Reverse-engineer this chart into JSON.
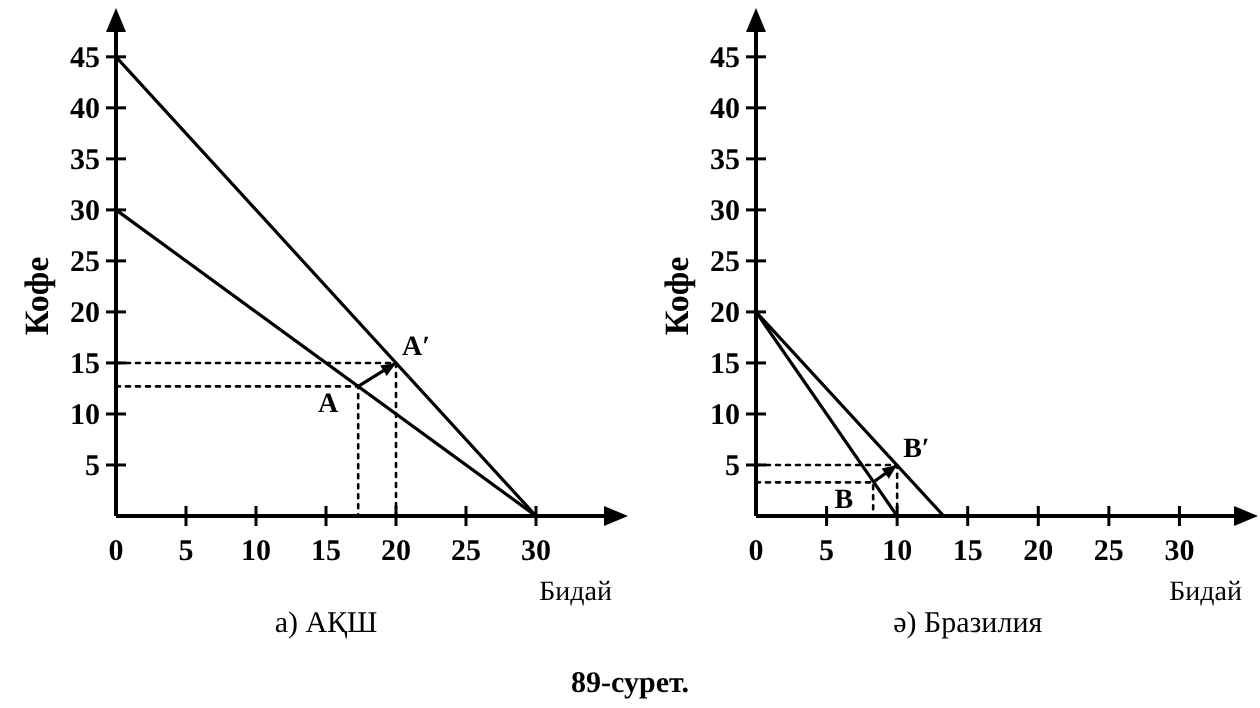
{
  "chart_data": [
    {
      "type": "line",
      "title": "а) АҚШ",
      "xlabel": "Бидай",
      "ylabel": "Кофе",
      "xlim": [
        0,
        36
      ],
      "ylim": [
        0,
        49
      ],
      "xticks": [
        0,
        5,
        10,
        15,
        20,
        25,
        30
      ],
      "yticks": [
        5,
        10,
        15,
        20,
        25,
        30,
        35,
        40,
        45
      ],
      "marker": "none",
      "grid": false,
      "series": [
        {
          "color": "#000000",
          "x": [
            0,
            30
          ],
          "values": [
            30,
            0
          ],
          "line_style": "solid"
        },
        {
          "color": "#000000",
          "x": [
            0,
            30
          ],
          "values": [
            45,
            0
          ],
          "line_style": "solid"
        },
        {
          "color": "#000000",
          "x": [
            0,
            17.3,
            17.3
          ],
          "values": [
            12.7,
            12.7,
            0
          ],
          "line_style": "dotted"
        },
        {
          "color": "#000000",
          "x": [
            0,
            20,
            20
          ],
          "values": [
            15,
            15,
            0
          ],
          "line_style": "dotted"
        }
      ],
      "annotations": [
        {
          "text": "A",
          "x": 17.3,
          "y": 12.7
        },
        {
          "text": "A′",
          "x": 20,
          "y": 15
        },
        "89-сурет."
      ]
    },
    {
      "type": "line",
      "title": "ә) Бразилия",
      "xlabel": "Бидай",
      "ylabel": "Кофе",
      "xlim": [
        0,
        35
      ],
      "ylim": [
        0,
        49
      ],
      "xticks": [
        0,
        5,
        10,
        15,
        20,
        25,
        30
      ],
      "yticks": [
        5,
        10,
        15,
        20,
        25,
        30,
        35,
        40,
        45
      ],
      "marker": "none",
      "grid": false,
      "series": [
        {
          "color": "#000000",
          "x": [
            0,
            10
          ],
          "values": [
            20,
            0
          ],
          "line_style": "solid"
        },
        {
          "color": "#000000",
          "x": [
            0,
            13.3
          ],
          "values": [
            20,
            0
          ],
          "line_style": "solid"
        },
        {
          "color": "#000000",
          "x": [
            0,
            8.3,
            8.3
          ],
          "values": [
            3.3,
            3.3,
            0
          ],
          "line_style": "dotted"
        },
        {
          "color": "#000000",
          "x": [
            0,
            10,
            10
          ],
          "values": [
            5,
            5,
            0
          ],
          "line_style": "dotted"
        }
      ],
      "annotations": [
        {
          "text": "B",
          "x": 8.3,
          "y": 3.3
        },
        {
          "text": "B′",
          "x": 10,
          "y": 5
        }
      ]
    }
  ]
}
